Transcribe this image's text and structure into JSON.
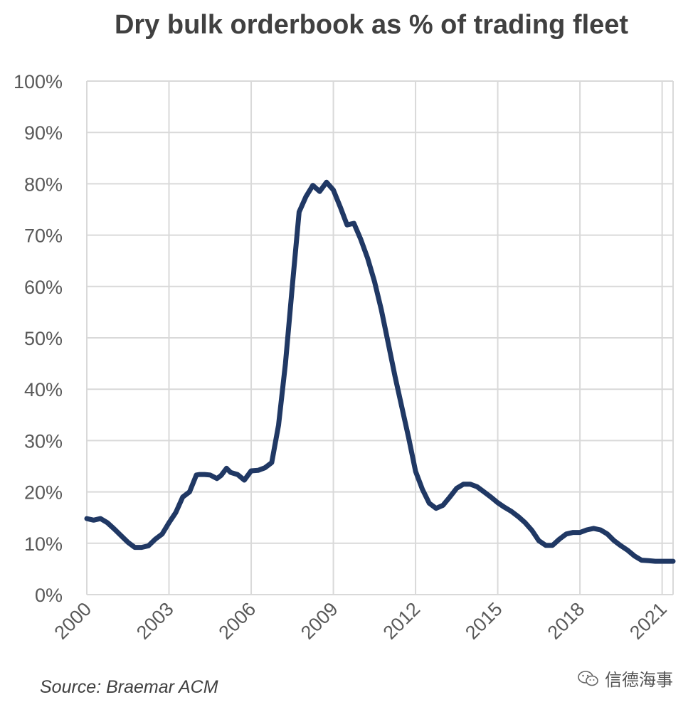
{
  "chart_data": {
    "type": "line",
    "title": "Dry bulk orderbook as % of trading fleet",
    "xlabel": "",
    "ylabel": "",
    "ylim": [
      0,
      100
    ],
    "xlim": [
      2000,
      2021.4
    ],
    "grid": true,
    "y_ticks": [
      "0%",
      "10%",
      "20%",
      "30%",
      "40%",
      "50%",
      "60%",
      "70%",
      "80%",
      "90%",
      "100%"
    ],
    "y_tick_values": [
      0,
      10,
      20,
      30,
      40,
      50,
      60,
      70,
      80,
      90,
      100
    ],
    "x_ticks": [
      "2000",
      "2003",
      "2006",
      "2009",
      "2012",
      "2015",
      "2018",
      "2021"
    ],
    "x_tick_values": [
      2000,
      2003,
      2006,
      2009,
      2012,
      2015,
      2018,
      2021
    ],
    "series": [
      {
        "name": "Orderbook % of trading fleet",
        "color": "#203864",
        "x": [
          2000.0,
          2000.25,
          2000.5,
          2000.75,
          2001.0,
          2001.25,
          2001.5,
          2001.75,
          2002.0,
          2002.25,
          2002.5,
          2002.75,
          2003.0,
          2003.25,
          2003.5,
          2003.75,
          2004.0,
          2004.12,
          2004.3,
          2004.5,
          2004.75,
          2004.9,
          2005.1,
          2005.25,
          2005.5,
          2005.75,
          2006.0,
          2006.25,
          2006.5,
          2006.75,
          2007.0,
          2007.25,
          2007.5,
          2007.75,
          2008.0,
          2008.25,
          2008.5,
          2008.75,
          2009.0,
          2009.25,
          2009.5,
          2009.75,
          2010.0,
          2010.25,
          2010.5,
          2010.75,
          2011.0,
          2011.25,
          2011.5,
          2011.75,
          2012.0,
          2012.25,
          2012.5,
          2012.75,
          2013.0,
          2013.25,
          2013.5,
          2013.75,
          2014.0,
          2014.25,
          2014.5,
          2014.75,
          2015.0,
          2015.25,
          2015.5,
          2015.75,
          2016.0,
          2016.25,
          2016.5,
          2016.75,
          2017.0,
          2017.25,
          2017.5,
          2017.75,
          2018.0,
          2018.25,
          2018.5,
          2018.75,
          2019.0,
          2019.25,
          2019.5,
          2019.75,
          2020.0,
          2020.25,
          2020.5,
          2020.75,
          2021.0,
          2021.25,
          2021.4
        ],
        "values": [
          14.8,
          14.5,
          14.8,
          14.0,
          12.8,
          11.5,
          10.2,
          9.2,
          9.2,
          9.5,
          10.8,
          11.8,
          14.0,
          16.0,
          19.0,
          20.0,
          23.3,
          23.4,
          23.4,
          23.3,
          22.6,
          23.2,
          24.6,
          23.8,
          23.4,
          22.3,
          24.1,
          24.2,
          24.7,
          25.7,
          33.0,
          45.0,
          60.0,
          74.5,
          77.5,
          79.7,
          78.5,
          80.3,
          78.8,
          75.5,
          72.0,
          72.3,
          69.2,
          65.5,
          61.0,
          55.5,
          49.0,
          42.5,
          36.5,
          30.5,
          24.0,
          20.5,
          17.8,
          16.8,
          17.4,
          19.0,
          20.7,
          21.5,
          21.5,
          21.0,
          20.0,
          19.0,
          17.9,
          17.0,
          16.2,
          15.2,
          14.0,
          12.5,
          10.5,
          9.6,
          9.6,
          10.8,
          11.8,
          12.1,
          12.1,
          12.6,
          12.9,
          12.6,
          11.8,
          10.5,
          9.5,
          8.6,
          7.5,
          6.7,
          6.6,
          6.5,
          6.5,
          6.5,
          6.5
        ]
      }
    ]
  },
  "source": "Source: Braemar ACM",
  "watermark": "信德海事"
}
